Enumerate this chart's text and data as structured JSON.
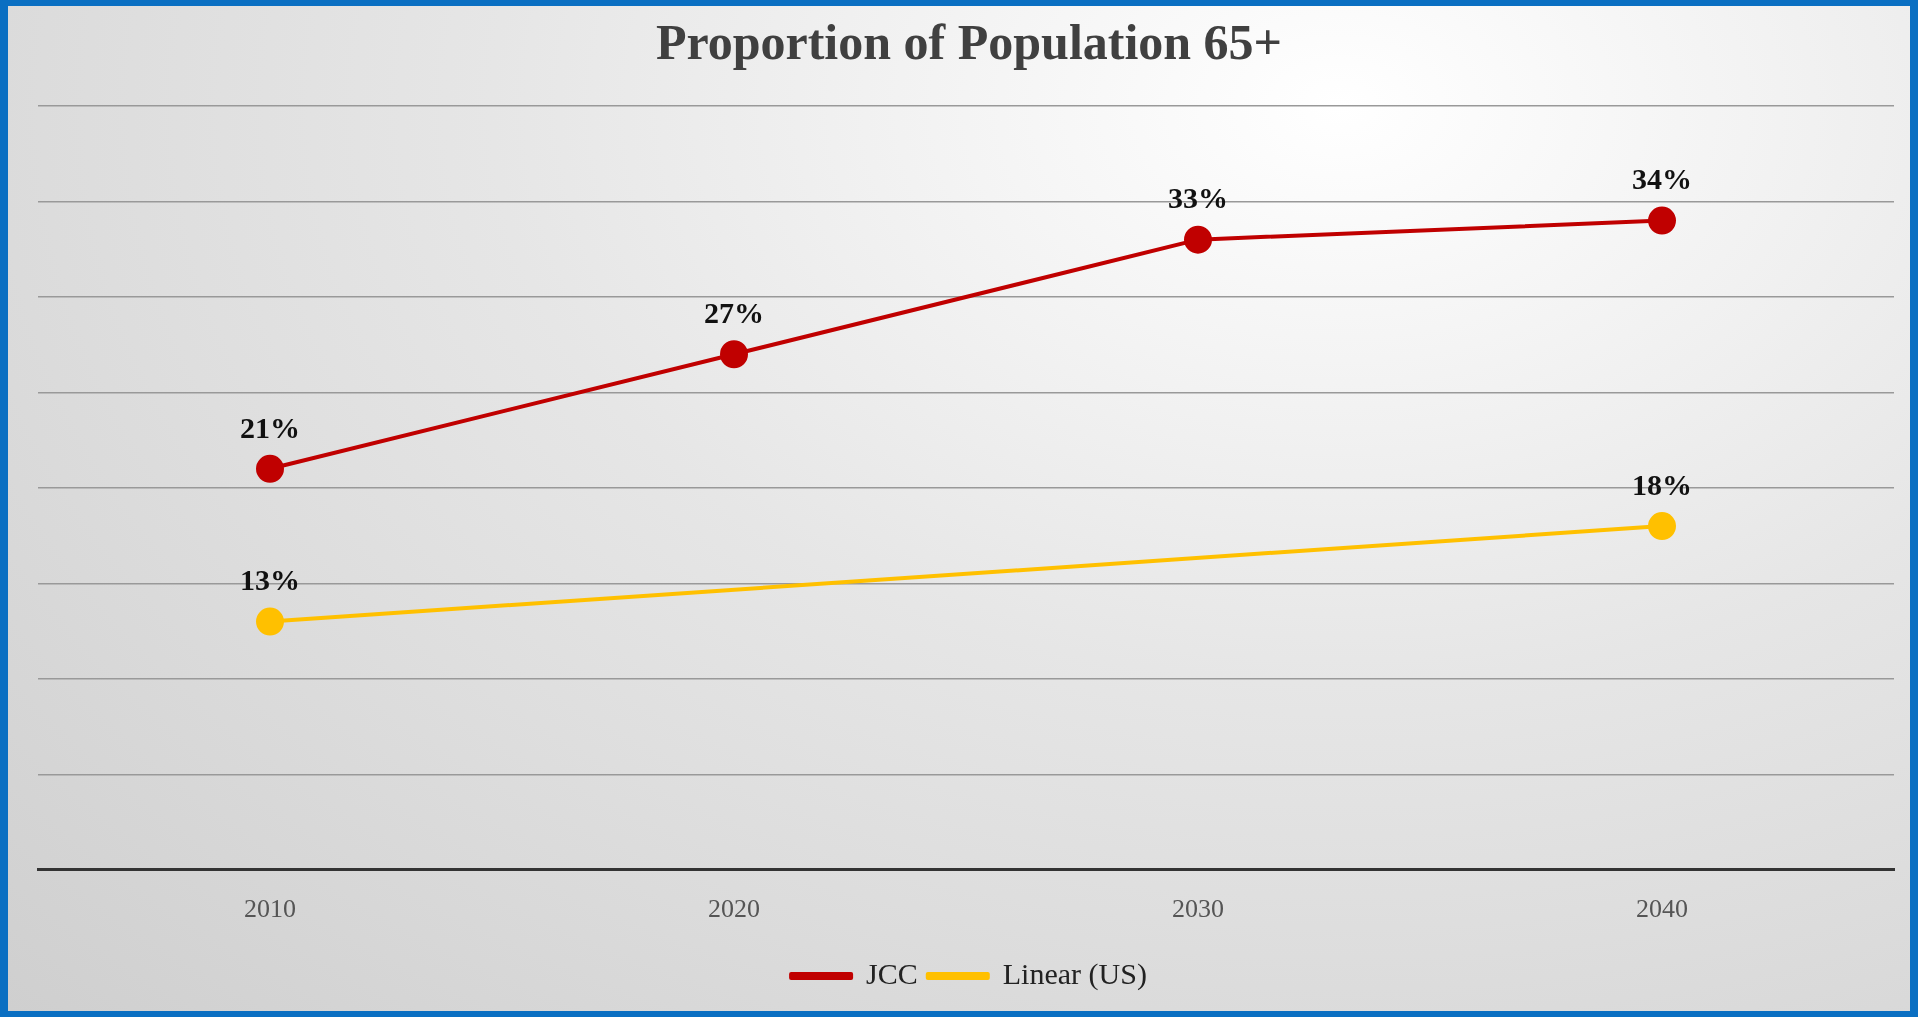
{
  "chart_data": {
    "type": "line",
    "title": "Proportion of Population 65+",
    "categories": [
      "2010",
      "2020",
      "2030",
      "2040"
    ],
    "series": [
      {
        "name": "JCC",
        "color": "#c00000",
        "values": [
          21,
          27,
          33,
          34
        ],
        "value_labels": [
          "21%",
          "27%",
          "33%",
          "34%"
        ],
        "marker": "circle"
      },
      {
        "name": "Linear (US)",
        "color": "#ffc000",
        "values": [
          13,
          null,
          null,
          18
        ],
        "value_labels": [
          "13%",
          null,
          null,
          "18%"
        ],
        "marker": "circle"
      }
    ],
    "ylim": [
      0,
      40
    ],
    "yticks": [
      {
        "value": 0,
        "label": null
      },
      {
        "value": 5,
        "label": null
      },
      {
        "value": 10,
        "label": null
      },
      {
        "value": 15,
        "label": null
      },
      {
        "value": 20,
        "label": null
      },
      {
        "value": 25,
        "label": null
      },
      {
        "value": 30,
        "label": null
      },
      {
        "value": 35,
        "label": null
      },
      {
        "value": 40,
        "label": null
      }
    ],
    "tick_labels": "x",
    "grid": "y",
    "legend": "bottom"
  }
}
